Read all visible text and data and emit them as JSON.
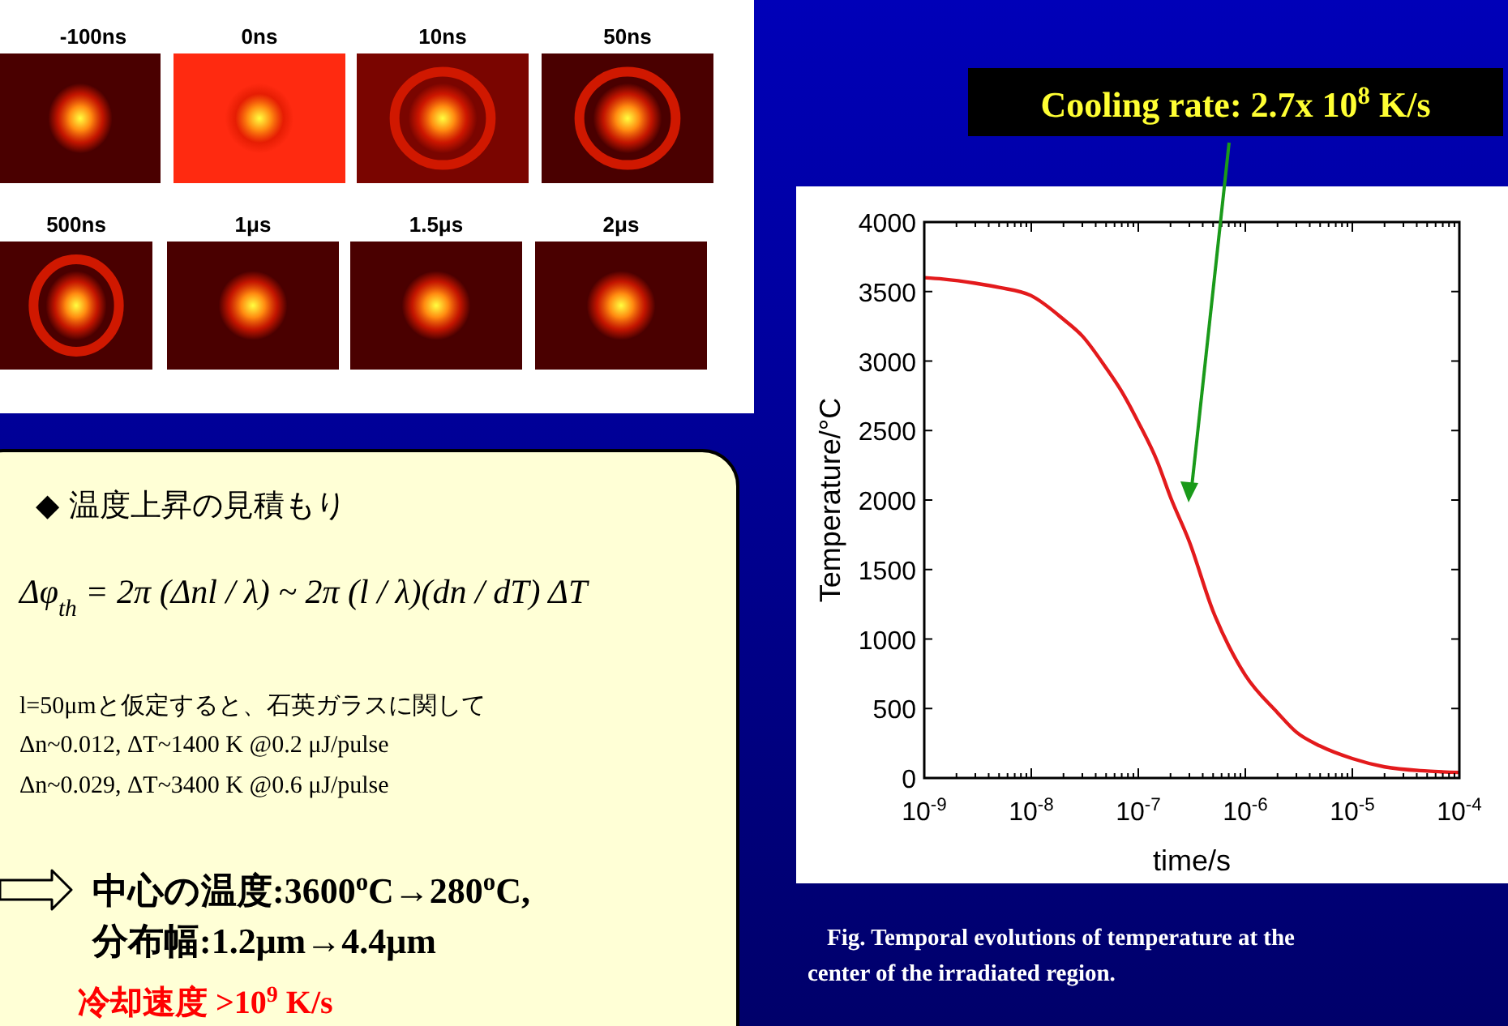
{
  "chart_data": {
    "type": "line",
    "xlabel": "time/s",
    "ylabel": "Temperature/°C",
    "log": "x",
    "x": [
      1e-09,
      1.5e-09,
      3e-09,
      5e-09,
      1e-08,
      2e-08,
      3e-08,
      5e-08,
      7e-08,
      1e-07,
      1.5e-07,
      2e-07,
      3e-07,
      5e-07,
      7e-07,
      1e-06,
      2e-06,
      3e-06,
      5e-06,
      1e-05,
      2e-05,
      5e-05,
      0.0001
    ],
    "series": [
      {
        "color": "#e31a1c",
        "values": [
          3600,
          3590,
          3560,
          3530,
          3470,
          3300,
          3180,
          2950,
          2780,
          2560,
          2280,
          2020,
          1700,
          1200,
          950,
          740,
          470,
          330,
          230,
          140,
          80,
          50,
          40
        ]
      }
    ],
    "xlim": [
      1e-09,
      0.0001
    ],
    "ylim": [
      0,
      4000
    ],
    "xticks": [
      {
        "value": 1e-09,
        "label": "10$^{-9}$"
      },
      {
        "value": 1e-08,
        "label": "10$^{-8}$"
      },
      {
        "value": 1e-07,
        "label": "10$^{-7}$"
      },
      {
        "value": 1e-06,
        "label": "10$^{-6}$"
      },
      {
        "value": 1e-05,
        "label": "10$^{-5}$"
      },
      {
        "value": 0.0001,
        "label": "10$^{-4}$"
      }
    ],
    "yticks": [
      0,
      500,
      1000,
      1500,
      2000,
      2500,
      3000,
      3500,
      4000
    ],
    "grid": false,
    "marker": "none",
    "line_style": "solid",
    "annotations": [
      "Cooling rate: 2.7x 10$^{8}$ K/s",
      "Fig. Temporal evolutions of temperature at the center of the irradiated region.",
      "-100ns",
      "0ns",
      "10ns",
      "50ns",
      "500ns",
      "1μs",
      "1.5μs",
      "2μs",
      "◆  温度上昇の見積もり",
      "Δφ$_{th}$ = 2π (Δnl / λ) ~ 2π (l / λ)(dn / dT) ΔT",
      "l=50μmと仮定すると、石英ガラスに関して",
      "Δn~0.012,  ΔT~1400 K @0.2 μJ/pulse",
      "Δn~0.029,  ΔT~3400 K @0.6 μJ/pulse",
      "中心の温度:3600$^{o}$C→280$^{o}$C,",
      "分布幅:1.2μm→4.4μm",
      "冷却速度  >10$^{9}$ K/s"
    ]
  }
}
